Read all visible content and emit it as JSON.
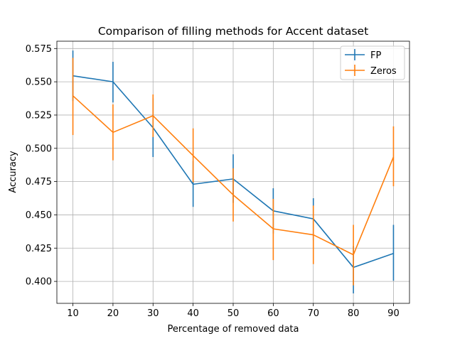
{
  "chart_data": {
    "type": "line",
    "title": "Comparison of filling methods for Accent dataset",
    "xlabel": "Percentage of removed data",
    "ylabel": "Accuracy",
    "x": [
      10,
      20,
      30,
      40,
      50,
      60,
      70,
      80,
      90
    ],
    "xticks": [
      "10",
      "20",
      "30",
      "40",
      "50",
      "60",
      "70",
      "80",
      "90"
    ],
    "yticks": [
      "0.400",
      "0.425",
      "0.450",
      "0.475",
      "0.500",
      "0.525",
      "0.550",
      "0.575"
    ],
    "xlim": [
      6,
      94
    ],
    "ylim": [
      0.3835,
      0.5805
    ],
    "grid": true,
    "legend_position": "top-right",
    "series": [
      {
        "name": "FP",
        "color": "#1f77b4",
        "values": [
          0.5545,
          0.55,
          0.5155,
          0.473,
          0.477,
          0.453,
          0.447,
          0.4105,
          0.421
        ],
        "err_low": [
          0.5355,
          0.5345,
          0.4935,
          0.456,
          0.459,
          0.436,
          0.431,
          0.391,
          0.4005
        ],
        "err_high": [
          0.5735,
          0.565,
          0.5375,
          0.4905,
          0.4955,
          0.47,
          0.4625,
          0.4265,
          0.4425
        ]
      },
      {
        "name": "Zeros",
        "color": "#ff7f0e",
        "values": [
          0.5395,
          0.512,
          0.5245,
          0.4945,
          0.465,
          0.4395,
          0.435,
          0.42,
          0.4935
        ],
        "err_low": [
          0.51,
          0.491,
          0.5085,
          0.4745,
          0.445,
          0.416,
          0.413,
          0.397,
          0.4715
        ],
        "err_high": [
          0.568,
          0.533,
          0.5405,
          0.515,
          0.485,
          0.462,
          0.457,
          0.4425,
          0.5165
        ]
      }
    ]
  }
}
